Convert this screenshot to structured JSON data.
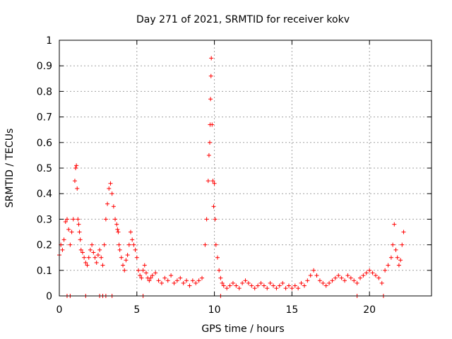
{
  "chart_data": {
    "type": "scatter",
    "title": "Day 271 of 2021, SRMTID for receiver kokv",
    "xlabel": "GPS time / hours",
    "ylabel": "SRMTID / TECUs",
    "xlim": [
      0,
      24
    ],
    "ylim": [
      0,
      1
    ],
    "xticks": [
      "0",
      "5",
      "10",
      "15",
      "20"
    ],
    "xtick_values": [
      0,
      5,
      10,
      15,
      20
    ],
    "yticks": [
      "0",
      "0.1",
      "0.2",
      "0.3",
      "0.4",
      "0.5",
      "0.6",
      "0.7",
      "0.8",
      "0.9",
      "1"
    ],
    "ytick_values": [
      0,
      0.1,
      0.2,
      0.3,
      0.4,
      0.5,
      0.6,
      0.7,
      0.8,
      0.9,
      1
    ],
    "grid": true,
    "marker": "+",
    "color": "#ff0000",
    "series": [
      {
        "name": "SRMTID",
        "x": [
          0.0,
          0.1,
          0.2,
          0.3,
          0.4,
          0.5,
          0.6,
          0.7,
          0.8,
          0.9,
          1.0,
          1.05,
          1.1,
          1.15,
          1.2,
          1.25,
          1.3,
          1.35,
          1.4,
          1.5,
          1.6,
          1.7,
          1.8,
          1.9,
          2.0,
          2.1,
          2.2,
          2.3,
          2.4,
          2.5,
          2.6,
          2.7,
          2.8,
          2.9,
          3.0,
          3.1,
          3.2,
          3.3,
          3.4,
          3.5,
          3.6,
          3.7,
          3.75,
          3.8,
          3.85,
          3.9,
          4.0,
          4.1,
          4.2,
          4.3,
          4.4,
          4.5,
          4.6,
          4.7,
          4.8,
          4.9,
          5.0,
          5.1,
          5.2,
          5.3,
          5.4,
          5.5,
          5.6,
          5.7,
          5.8,
          5.9,
          6.0,
          6.2,
          6.4,
          6.6,
          6.8,
          7.0,
          7.2,
          7.4,
          7.6,
          7.8,
          8.0,
          8.2,
          8.4,
          8.6,
          8.8,
          9.0,
          9.2,
          9.4,
          9.5,
          9.6,
          9.65,
          9.7,
          9.72,
          9.75,
          9.78,
          9.8,
          9.85,
          9.9,
          9.95,
          10.0,
          10.05,
          10.1,
          10.2,
          10.3,
          10.4,
          10.5,
          10.6,
          10.8,
          11.0,
          11.2,
          11.4,
          11.6,
          11.8,
          12.0,
          12.2,
          12.4,
          12.6,
          12.8,
          13.0,
          13.2,
          13.4,
          13.6,
          13.8,
          14.0,
          14.2,
          14.4,
          14.6,
          14.8,
          15.0,
          15.2,
          15.4,
          15.6,
          15.8,
          16.0,
          16.2,
          16.4,
          16.6,
          16.8,
          17.0,
          17.2,
          17.4,
          17.6,
          17.8,
          18.0,
          18.2,
          18.4,
          18.6,
          18.8,
          19.0,
          19.2,
          19.4,
          19.6,
          19.8,
          20.0,
          20.2,
          20.4,
          20.6,
          20.8,
          21.0,
          21.2,
          21.4,
          21.5,
          21.6,
          21.7,
          21.8,
          21.9,
          22.0,
          22.1,
          22.2
        ],
        "values": [
          0.16,
          0.2,
          0.18,
          0.22,
          0.29,
          0.3,
          0.26,
          0.2,
          0.25,
          0.3,
          0.45,
          0.5,
          0.51,
          0.42,
          0.3,
          0.28,
          0.25,
          0.22,
          0.18,
          0.17,
          0.15,
          0.13,
          0.12,
          0.15,
          0.18,
          0.2,
          0.17,
          0.15,
          0.13,
          0.16,
          0.18,
          0.15,
          0.12,
          0.2,
          0.3,
          0.36,
          0.42,
          0.44,
          0.4,
          0.35,
          0.3,
          0.28,
          0.26,
          0.25,
          0.2,
          0.18,
          0.15,
          0.12,
          0.1,
          0.14,
          0.16,
          0.2,
          0.25,
          0.22,
          0.2,
          0.18,
          0.15,
          0.1,
          0.08,
          0.07,
          0.1,
          0.12,
          0.09,
          0.07,
          0.06,
          0.07,
          0.08,
          0.09,
          0.06,
          0.05,
          0.07,
          0.06,
          0.08,
          0.05,
          0.06,
          0.07,
          0.05,
          0.06,
          0.04,
          0.06,
          0.05,
          0.06,
          0.07,
          0.2,
          0.3,
          0.45,
          0.55,
          0.6,
          0.67,
          0.77,
          0.86,
          0.93,
          0.67,
          0.45,
          0.35,
          0.44,
          0.3,
          0.2,
          0.15,
          0.1,
          0.07,
          0.05,
          0.04,
          0.03,
          0.04,
          0.05,
          0.04,
          0.03,
          0.05,
          0.06,
          0.05,
          0.04,
          0.03,
          0.04,
          0.05,
          0.04,
          0.03,
          0.05,
          0.04,
          0.03,
          0.04,
          0.05,
          0.03,
          0.04,
          0.03,
          0.04,
          0.03,
          0.05,
          0.04,
          0.06,
          0.08,
          0.1,
          0.08,
          0.06,
          0.05,
          0.04,
          0.05,
          0.06,
          0.07,
          0.08,
          0.07,
          0.06,
          0.08,
          0.07,
          0.06,
          0.05,
          0.07,
          0.08,
          0.09,
          0.1,
          0.09,
          0.08,
          0.07,
          0.05,
          0.1,
          0.12,
          0.15,
          0.2,
          0.28,
          0.18,
          0.15,
          0.12,
          0.14,
          0.2,
          0.25
        ],
        "zero_points_x": [
          0.5,
          0.7,
          1.7,
          2.6,
          2.8,
          3.0,
          3.4,
          5.4,
          10.4,
          19.2,
          20.9
        ]
      }
    ]
  }
}
